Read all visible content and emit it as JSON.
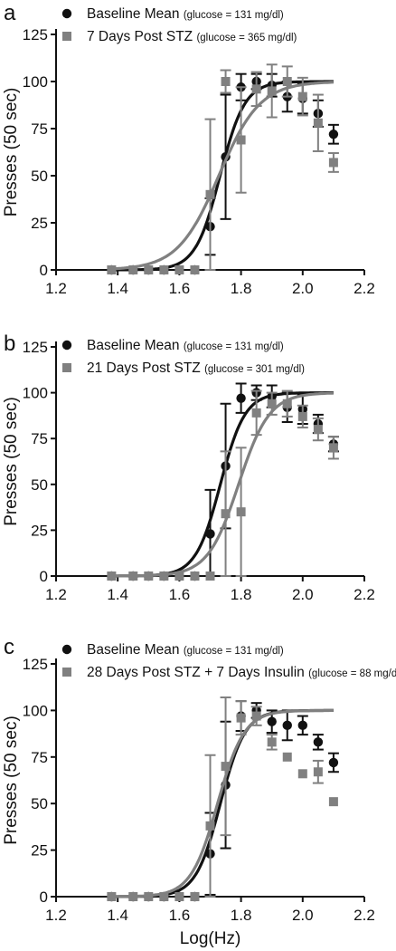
{
  "figure": {
    "colors": {
      "baseline": "#111111",
      "stz": "#808080",
      "axis": "#111111"
    },
    "icons": {
      "baseline": "filled-circle-marker",
      "stz": "filled-square-marker"
    }
  },
  "chart_data": [
    {
      "type": "scatter",
      "panel_label": "a",
      "ylabel": "Presses (50 sec)",
      "xlabel": "",
      "xlim": [
        1.2,
        2.2
      ],
      "ylim": [
        0,
        125
      ],
      "xticks": [
        "1.2",
        "1.4",
        "1.6",
        "1.8",
        "2.0",
        "2.2"
      ],
      "yticks": [
        "0",
        "25",
        "50",
        "75",
        "100",
        "125"
      ],
      "legend_position": "top",
      "series": [
        {
          "name": "Baseline Mean",
          "glucose": "(glucose = 131 mg/dl)",
          "marker": "circle",
          "color": "#111111",
          "x": [
            1.38,
            1.45,
            1.5,
            1.55,
            1.6,
            1.65,
            1.7,
            1.75,
            1.8,
            1.85,
            1.9,
            1.95,
            2.0,
            2.05,
            2.1
          ],
          "y": [
            0,
            0,
            0,
            0,
            0,
            0,
            23,
            60,
            97,
            100,
            98,
            92,
            91,
            83,
            72
          ],
          "err": [
            0,
            0,
            0,
            0,
            0,
            0,
            15,
            33,
            7,
            4,
            6,
            8,
            8,
            7,
            5
          ],
          "fit": {
            "ec50": 1.732,
            "slope": 25,
            "top": 100
          }
        },
        {
          "name": "7 Days Post STZ",
          "glucose": "(glucose = 365 mg/dl)",
          "marker": "square",
          "color": "#808080",
          "x": [
            1.38,
            1.45,
            1.5,
            1.55,
            1.6,
            1.65,
            1.7,
            1.75,
            1.8,
            1.85,
            1.9,
            1.95,
            2.0,
            2.05,
            2.1
          ],
          "y": [
            0,
            0,
            0,
            0,
            0,
            0,
            40,
            100,
            69,
            96,
            95,
            100,
            92,
            78,
            57
          ],
          "err": [
            0,
            0,
            0,
            0,
            0,
            0,
            40,
            6,
            28,
            9,
            14,
            8,
            10,
            15,
            5
          ],
          "fit": {
            "ec50": 1.728,
            "slope": 15,
            "top": 100
          }
        }
      ]
    },
    {
      "type": "scatter",
      "panel_label": "b",
      "ylabel": "Presses (50 sec)",
      "xlabel": "",
      "xlim": [
        1.2,
        2.2
      ],
      "ylim": [
        0,
        125
      ],
      "xticks": [
        "1.2",
        "1.4",
        "1.6",
        "1.8",
        "2.0",
        "2.2"
      ],
      "yticks": [
        "0",
        "25",
        "50",
        "75",
        "100",
        "125"
      ],
      "legend_position": "top",
      "series": [
        {
          "name": "Baseline Mean",
          "glucose": "(glucose = 131 mg/dl)",
          "marker": "circle",
          "color": "#111111",
          "x": [
            1.38,
            1.45,
            1.5,
            1.55,
            1.6,
            1.65,
            1.7,
            1.75,
            1.8,
            1.85,
            1.9,
            1.95,
            2.0,
            2.05,
            2.1
          ],
          "y": [
            0,
            0,
            0,
            0,
            0,
            0,
            23,
            60,
            97,
            100,
            98,
            92,
            91,
            83,
            72
          ],
          "err": [
            0,
            0,
            0,
            0,
            0,
            0,
            24,
            34,
            8,
            4,
            6,
            8,
            8,
            5,
            4
          ],
          "fit": {
            "ec50": 1.733,
            "slope": 25,
            "top": 100
          }
        },
        {
          "name": "21 Days Post STZ",
          "glucose": "(glucose = 301 mg/dl)",
          "marker": "square",
          "color": "#808080",
          "x": [
            1.38,
            1.45,
            1.5,
            1.55,
            1.6,
            1.65,
            1.7,
            1.75,
            1.8,
            1.85,
            1.9,
            1.95,
            2.0,
            2.05,
            2.1
          ],
          "y": [
            0,
            0,
            0,
            0,
            0,
            0,
            0,
            34,
            35,
            89,
            94,
            94,
            87,
            80,
            70
          ],
          "err": [
            0,
            0,
            0,
            0,
            0,
            0,
            0,
            34,
            35,
            12,
            6,
            7,
            6,
            6,
            6
          ],
          "fit": {
            "ec50": 1.792,
            "slope": 20,
            "top": 100
          }
        }
      ]
    },
    {
      "type": "scatter",
      "panel_label": "c",
      "ylabel": "Presses (50 sec)",
      "xlabel": "Log(Hz)",
      "xlim": [
        1.2,
        2.2
      ],
      "ylim": [
        0,
        125
      ],
      "xticks": [
        "1.2",
        "1.4",
        "1.6",
        "1.8",
        "2.0",
        "2.2"
      ],
      "yticks": [
        "0",
        "25",
        "50",
        "75",
        "100",
        "125"
      ],
      "legend_position": "top",
      "series": [
        {
          "name": "Baseline Mean",
          "glucose": "(glucose = 131 mg/dl)",
          "marker": "circle",
          "color": "#111111",
          "x": [
            1.38,
            1.45,
            1.5,
            1.55,
            1.6,
            1.65,
            1.7,
            1.75,
            1.8,
            1.85,
            1.9,
            1.95,
            2.0,
            2.05,
            2.1
          ],
          "y": [
            0,
            0,
            0,
            0,
            0,
            0,
            23,
            60,
            97,
            100,
            94,
            92,
            92,
            83,
            72
          ],
          "err": [
            0,
            0,
            0,
            0,
            0,
            0,
            22,
            34,
            8,
            4,
            6,
            8,
            5,
            4,
            5
          ],
          "fit": {
            "ec50": 1.733,
            "slope": 25,
            "top": 100
          }
        },
        {
          "name": "28 Days Post STZ + 7 Days Insulin",
          "glucose": "(glucose = 88 mg/dl)",
          "marker": "square",
          "color": "#808080",
          "x": [
            1.38,
            1.45,
            1.5,
            1.55,
            1.6,
            1.65,
            1.7,
            1.75,
            1.8,
            1.85,
            1.9,
            1.95,
            2.0,
            2.05,
            2.1
          ],
          "y": [
            0,
            0,
            0,
            0,
            0,
            0,
            38,
            70,
            96,
            97,
            83,
            75,
            66,
            67,
            51
          ],
          "err": [
            0,
            0,
            0,
            0,
            0,
            0,
            38,
            37,
            9,
            5,
            4,
            0,
            0,
            6,
            0
          ],
          "fit": {
            "ec50": 1.724,
            "slope": 23,
            "top": 100
          }
        }
      ]
    }
  ]
}
